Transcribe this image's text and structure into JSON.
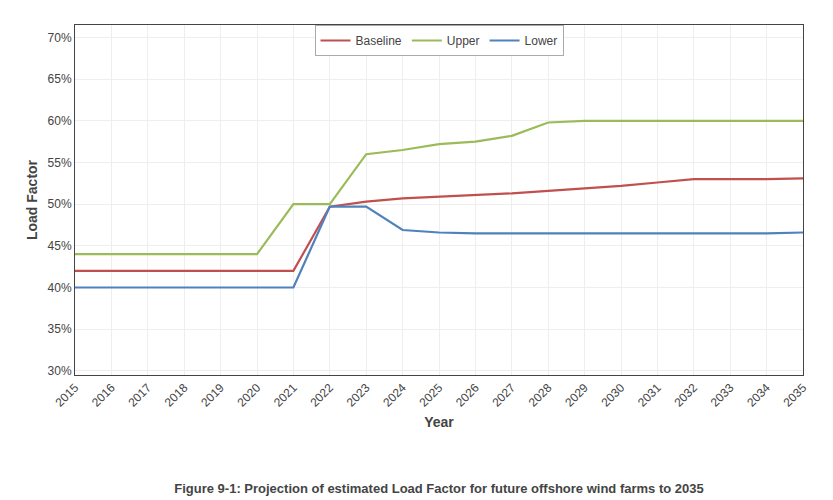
{
  "chart_data": {
    "type": "line",
    "title": "Figure 9-1: Projection of estimated Load Factor for future offshore wind farms to 2035",
    "xlabel": "Year",
    "ylabel": "Load Factor",
    "x": [
      2015,
      2016,
      2017,
      2018,
      2019,
      2020,
      2021,
      2022,
      2023,
      2024,
      2025,
      2026,
      2027,
      2028,
      2029,
      2030,
      2031,
      2032,
      2033,
      2034,
      2035
    ],
    "series": [
      {
        "name": "Baseline",
        "color": "#c0504d",
        "values": [
          0.42,
          0.42,
          0.42,
          0.42,
          0.42,
          0.42,
          0.42,
          0.497,
          0.503,
          0.507,
          0.509,
          0.511,
          0.513,
          0.516,
          0.519,
          0.522,
          0.526,
          0.53,
          0.53,
          0.53,
          0.531
        ]
      },
      {
        "name": "Upper",
        "color": "#9bbb59",
        "values": [
          0.44,
          0.44,
          0.44,
          0.44,
          0.44,
          0.44,
          0.5,
          0.5,
          0.56,
          0.565,
          0.572,
          0.575,
          0.582,
          0.598,
          0.6,
          0.6,
          0.6,
          0.6,
          0.6,
          0.6,
          0.6
        ]
      },
      {
        "name": "Lower",
        "color": "#4f81bd",
        "values": [
          0.4,
          0.4,
          0.4,
          0.4,
          0.4,
          0.4,
          0.4,
          0.497,
          0.497,
          0.469,
          0.466,
          0.465,
          0.465,
          0.465,
          0.465,
          0.465,
          0.465,
          0.465,
          0.465,
          0.465,
          0.466
        ]
      }
    ],
    "xlim": [
      2015,
      2035
    ],
    "xticks": [
      2015,
      2016,
      2017,
      2018,
      2019,
      2020,
      2021,
      2022,
      2023,
      2024,
      2025,
      2026,
      2027,
      2028,
      2029,
      2030,
      2031,
      2032,
      2033,
      2034,
      2035
    ],
    "ylim": [
      0.295,
      0.715
    ],
    "yticks": [
      {
        "value": 0.3,
        "label": "30%"
      },
      {
        "value": 0.35,
        "label": "35%"
      },
      {
        "value": 0.4,
        "label": "40%"
      },
      {
        "value": 0.45,
        "label": "45%"
      },
      {
        "value": 0.5,
        "label": "50%"
      },
      {
        "value": 0.55,
        "label": "55%"
      },
      {
        "value": 0.6,
        "label": "60%"
      },
      {
        "value": 0.65,
        "label": "65%"
      },
      {
        "value": 0.7,
        "label": "70%"
      }
    ],
    "grid": true,
    "legend": "upper center"
  }
}
